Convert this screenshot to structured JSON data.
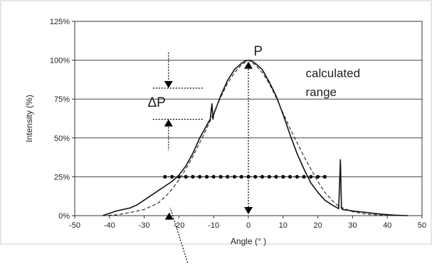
{
  "chart_data": {
    "type": "line",
    "title": "",
    "xlabel": "Angle (° )",
    "ylabel": "Intensity (%)",
    "xlim": [
      -50,
      50
    ],
    "ylim": [
      0,
      125
    ],
    "x_ticks": [
      "-50",
      "-40",
      "-30",
      "-20",
      "-10",
      "0",
      "10",
      "20",
      "30",
      "40",
      "50"
    ],
    "y_ticks": [
      "0%",
      "25%",
      "50%",
      "75%",
      "100%",
      "125%"
    ],
    "grid": "horizontal",
    "legend": "none",
    "series": [
      {
        "style": "solid",
        "x": [
          -42,
          -40,
          -38,
          -36,
          -34,
          -32,
          -30,
          -28,
          -26,
          -24,
          -22,
          -20,
          -18,
          -16,
          -14,
          -12,
          -11,
          -10.5,
          -10.2,
          -10,
          -8,
          -6,
          -4,
          -2,
          -1,
          0,
          1,
          2,
          4,
          6,
          8,
          10,
          12,
          14,
          16,
          18,
          20,
          22,
          24,
          26,
          26.5,
          26.8,
          27,
          30,
          34,
          38,
          42,
          46
        ],
        "values": [
          0,
          1.5,
          3,
          4,
          5,
          7,
          10,
          13,
          16,
          19,
          22,
          26,
          32,
          40,
          50,
          58,
          62,
          72,
          62,
          65,
          77,
          87,
          94,
          98,
          99.5,
          100,
          99.5,
          98,
          94,
          86,
          77,
          65,
          52,
          40,
          30,
          21,
          15,
          10,
          7,
          4.5,
          36,
          5,
          4,
          3,
          2,
          1,
          0.3,
          0
        ]
      },
      {
        "style": "dashed",
        "x": [
          -42,
          -38,
          -34,
          -30,
          -26,
          -24,
          -22,
          -20,
          -18,
          -16,
          -14,
          -12,
          -10,
          -8,
          -6,
          -4,
          -2,
          0,
          2,
          4,
          6,
          8,
          10,
          12,
          14,
          16,
          18,
          20,
          22,
          24,
          26,
          30,
          34,
          38,
          42
        ],
        "values": [
          0,
          0.5,
          2,
          4,
          8,
          12,
          17,
          23,
          30,
          38,
          47,
          56,
          66,
          76,
          85,
          92,
          97,
          100,
          97,
          92,
          85,
          76,
          66,
          56,
          47,
          38,
          30,
          22,
          15,
          10,
          6,
          2.5,
          1,
          0.3,
          0
        ]
      },
      {
        "style": "dotted-markers",
        "x": [
          -24,
          -22,
          -20,
          -18,
          -16,
          -14,
          -12,
          -10,
          -8,
          -6,
          -4,
          -2,
          0,
          2,
          4,
          6,
          8,
          10,
          12,
          14,
          16,
          18,
          20,
          22
        ],
        "values": [
          25,
          25,
          25,
          25,
          25,
          25,
          25,
          25,
          25,
          25,
          25,
          25,
          25,
          25,
          25,
          25,
          25,
          25,
          25,
          25,
          25,
          25,
          25,
          25
        ]
      }
    ],
    "annotations": {
      "peak_label": "P",
      "delta_label": "ΔP",
      "range_line1": "calculated",
      "range_line2": "range"
    }
  }
}
